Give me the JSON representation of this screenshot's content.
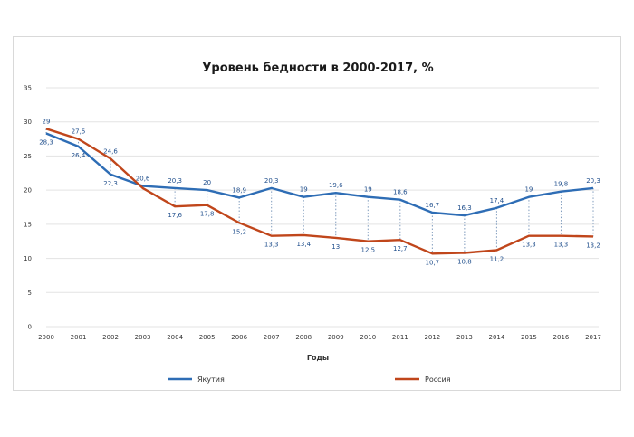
{
  "chart_data": {
    "type": "line",
    "title": "Уровень бедности в 2000-2017, %",
    "xlabel": "Годы",
    "ylabel": "",
    "ylim": [
      0,
      35
    ],
    "yticks": [
      "0",
      "5",
      "10",
      "15",
      "20",
      "25",
      "30",
      "35"
    ],
    "categories": [
      "2000",
      "2001",
      "2002",
      "2003",
      "2004",
      "2005",
      "2006",
      "2007",
      "2008",
      "2009",
      "2010",
      "2011",
      "2012",
      "2013",
      "2014",
      "2015",
      "2016",
      "2017"
    ],
    "series": [
      {
        "name": "Якутия",
        "color": "#2e6db5",
        "values": [
          28.3,
          26.4,
          22.3,
          20.6,
          20.3,
          20,
          18.9,
          20.3,
          19,
          19.6,
          19,
          18.6,
          16.7,
          16.3,
          17.4,
          19,
          19.8,
          20.3
        ],
        "labels": [
          "28,3",
          "26,4",
          "22,3",
          "20,6",
          "20,3",
          "20",
          "18,9",
          "20,3",
          "19",
          "19,6",
          "19",
          "18,6",
          "16,7",
          "16,3",
          "17,4",
          "19",
          "19,8",
          "20,3"
        ]
      },
      {
        "name": "Россия",
        "color": "#c0461b",
        "values": [
          29,
          27.5,
          24.6,
          20.3,
          17.6,
          17.8,
          15.2,
          13.3,
          13.4,
          13,
          12.5,
          12.7,
          10.7,
          10.8,
          11.2,
          13.3,
          13.3,
          13.2
        ],
        "labels": [
          "29",
          "27,5",
          "24,6",
          "",
          "17,6",
          "17,8",
          "15,2",
          "13,3",
          "13,4",
          "13",
          "12,5",
          "12,7",
          "10,7",
          "10,8",
          "11,2",
          "13,3",
          "13,3",
          "13,2"
        ]
      }
    ],
    "legend": "bottom",
    "grid": true
  }
}
